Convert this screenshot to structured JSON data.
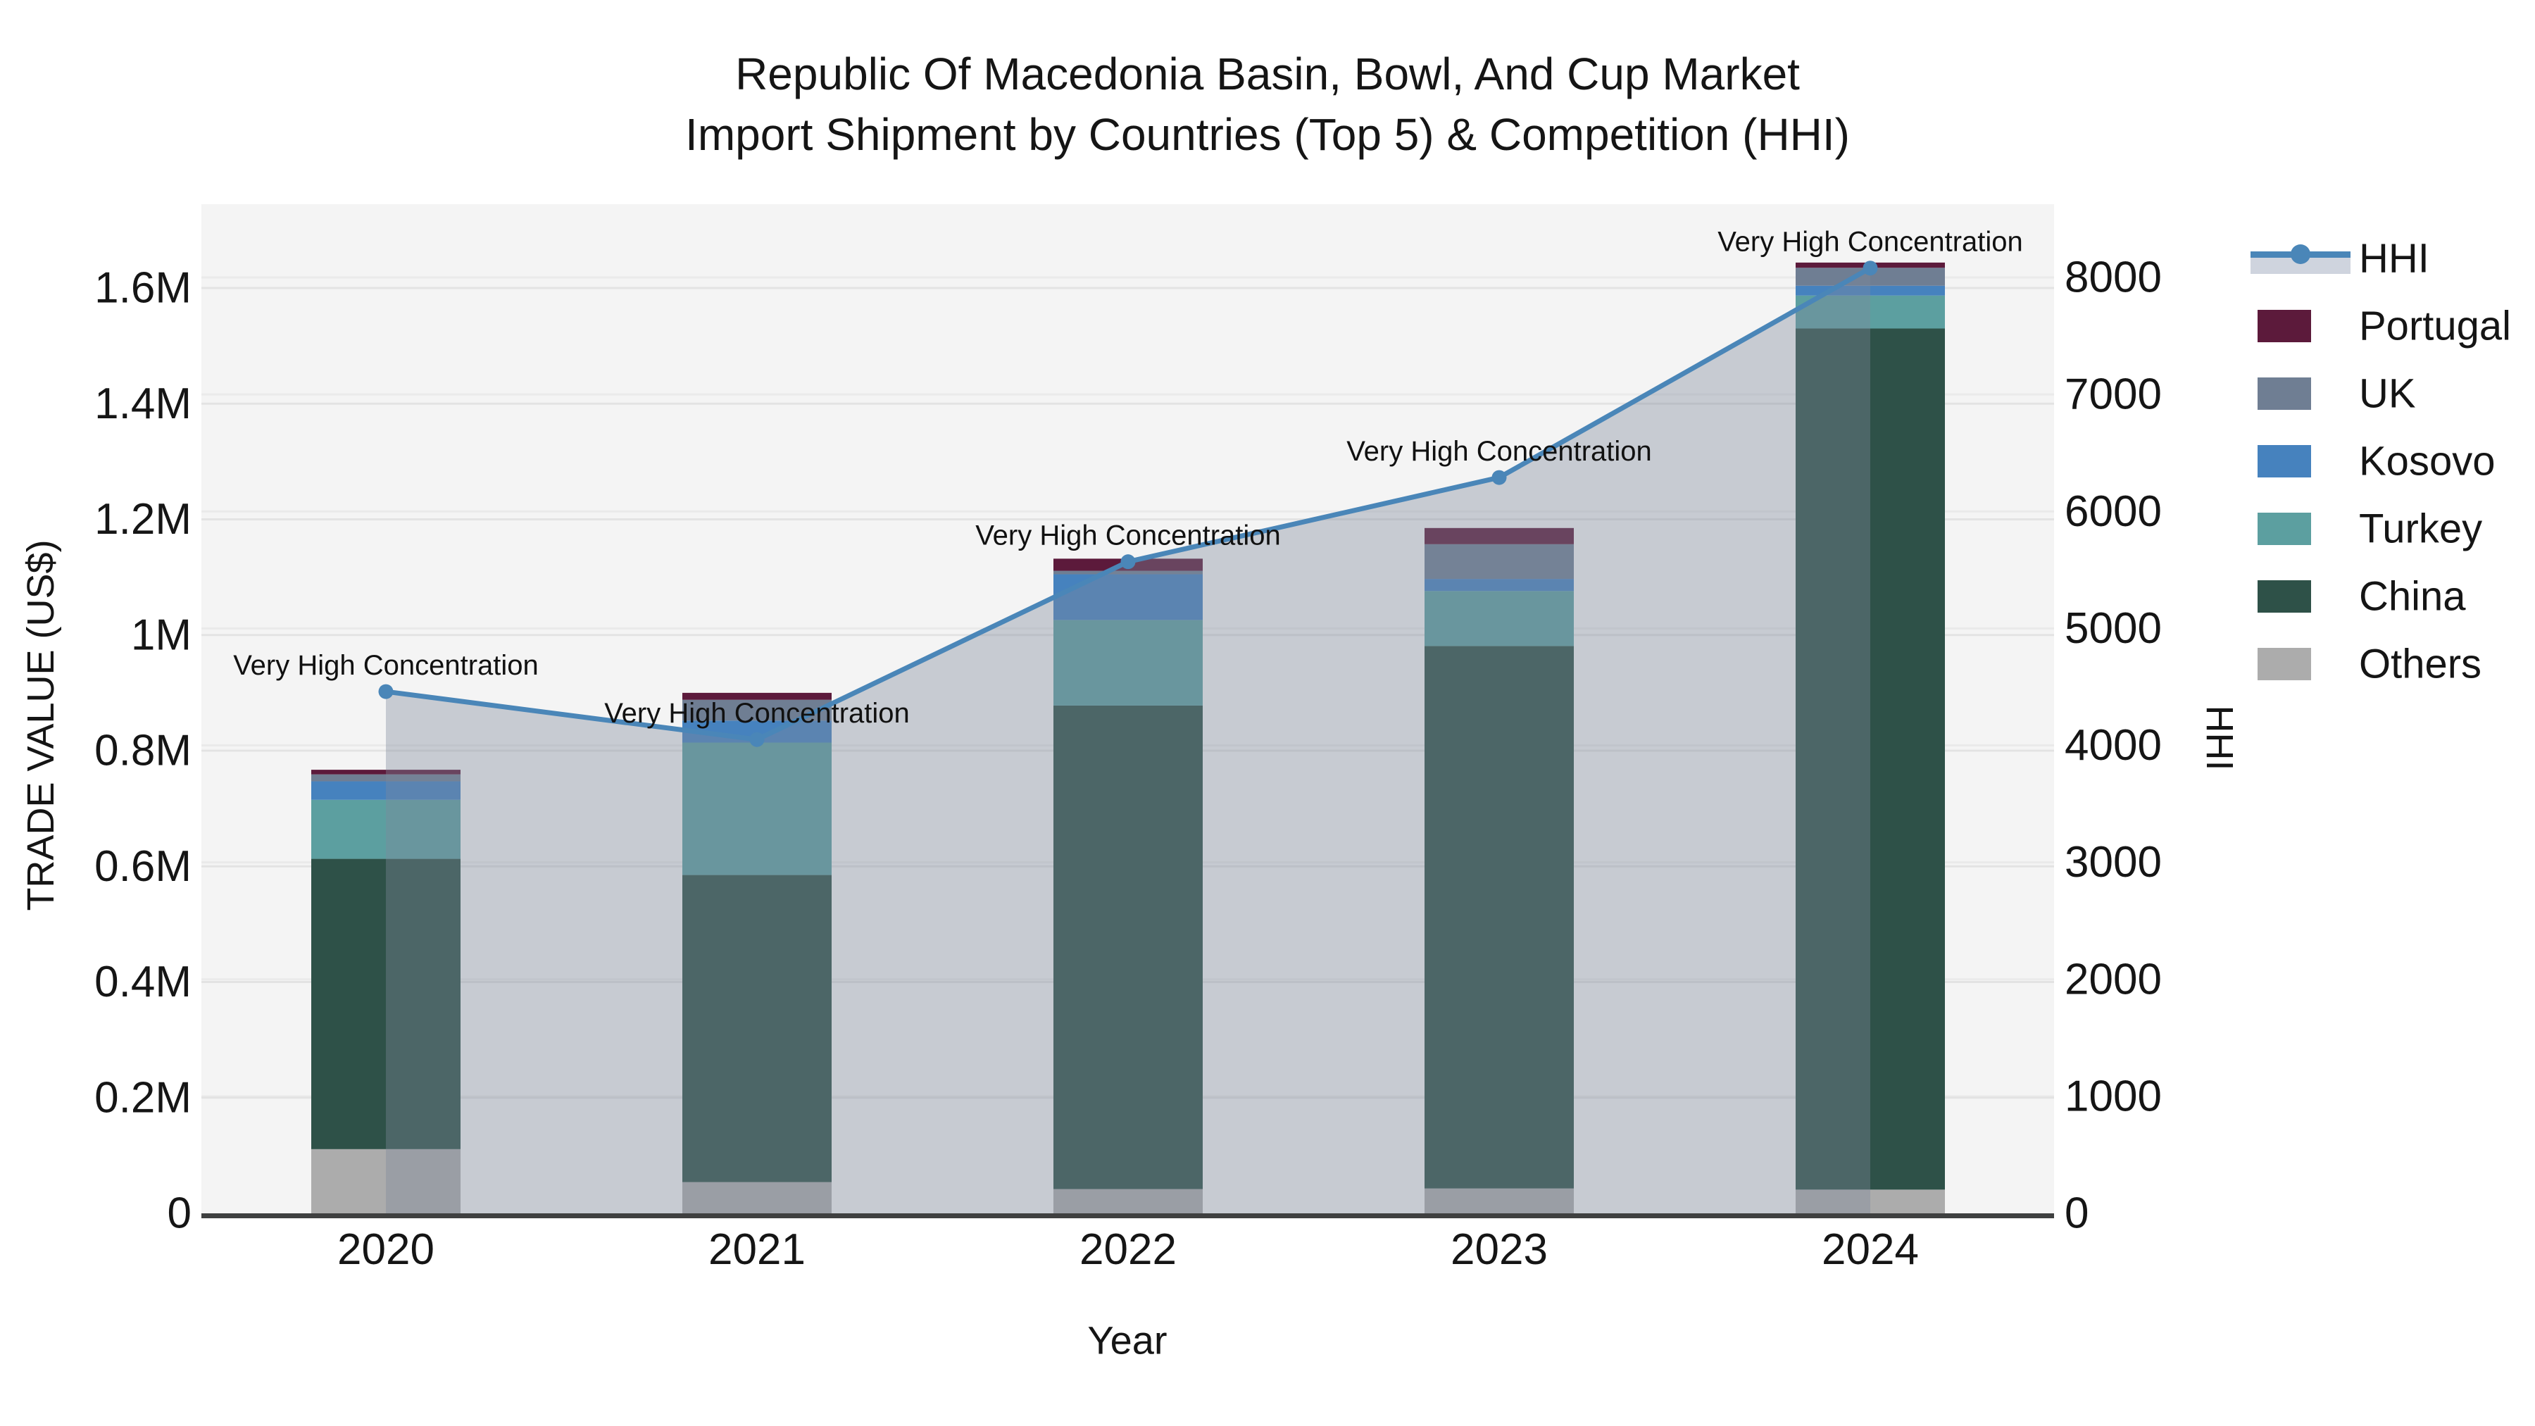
{
  "title": {
    "line1": "Republic Of Macedonia Basin, Bowl, And Cup Market",
    "line2": "Import Shipment by Countries (Top 5) & Competition (HHI)"
  },
  "axes": {
    "x": {
      "label": "Year",
      "ticks": [
        "2020",
        "2021",
        "2022",
        "2023",
        "2024"
      ]
    },
    "y_left": {
      "label": "TRADE VALUE (US$)",
      "ticks": [
        "0",
        "0.2M",
        "0.4M",
        "0.6M",
        "0.8M",
        "1M",
        "1.2M",
        "1.4M",
        "1.6M"
      ],
      "tick_values": [
        0,
        200000,
        400000,
        600000,
        800000,
        1000000,
        1200000,
        1400000,
        1600000
      ]
    },
    "y_right": {
      "label": "HHI",
      "ticks": [
        "0",
        "1000",
        "2000",
        "3000",
        "4000",
        "5000",
        "6000",
        "7000",
        "8000"
      ],
      "tick_values": [
        0,
        1000,
        2000,
        3000,
        4000,
        5000,
        6000,
        7000,
        8000
      ]
    }
  },
  "legend": [
    {
      "label": "HHI",
      "type": "line",
      "color": "#4A86B8"
    },
    {
      "label": "Portugal",
      "type": "swatch",
      "color": "#5C1A3B"
    },
    {
      "label": "UK",
      "type": "swatch",
      "color": "#6F7E93"
    },
    {
      "label": "Kosovo",
      "type": "swatch",
      "color": "#4682BE"
    },
    {
      "label": "Turkey",
      "type": "swatch",
      "color": "#5C9FA0"
    },
    {
      "label": "China",
      "type": "swatch",
      "color": "#2E5148"
    },
    {
      "label": "Others",
      "type": "swatch",
      "color": "#ACACAC"
    }
  ],
  "chart_data": {
    "type": "combo: stacked bar (trade value) + line with area fill (HHI)",
    "categories": [
      "2020",
      "2021",
      "2022",
      "2023",
      "2024"
    ],
    "bar_unit": "US$",
    "stack_order_bottom_to_top": [
      "Others",
      "China",
      "Turkey",
      "Kosovo",
      "UK",
      "Portugal"
    ],
    "series": [
      {
        "name": "Others",
        "type": "bar",
        "color": "#ACACAC",
        "values": [
          111000,
          54000,
          42000,
          43000,
          41000
        ]
      },
      {
        "name": "China",
        "type": "bar",
        "color": "#2E5148",
        "values": [
          502000,
          531000,
          836000,
          938000,
          1489000
        ]
      },
      {
        "name": "Turkey",
        "type": "bar",
        "color": "#5C9FA0",
        "values": [
          102000,
          229000,
          148000,
          95000,
          57000
        ]
      },
      {
        "name": "Kosovo",
        "type": "bar",
        "color": "#4682BE",
        "values": [
          32000,
          38000,
          79000,
          21000,
          17000
        ]
      },
      {
        "name": "UK",
        "type": "bar",
        "color": "#6F7E93",
        "values": [
          12000,
          36000,
          6000,
          60000,
          31000
        ]
      },
      {
        "name": "Portugal",
        "type": "bar",
        "color": "#5C1A3B",
        "values": [
          8000,
          12000,
          21000,
          28000,
          9000
        ]
      }
    ],
    "bar_totals": [
      767000,
      900000,
      1132000,
      1185000,
      1644000
    ],
    "line": {
      "name": "HHI",
      "color": "#4A86B8",
      "values": [
        4460,
        4050,
        5570,
        6290,
        8080
      ],
      "area_fill": "rgba(127,137,154,0.38)",
      "marker": "circle"
    },
    "annotations": [
      {
        "category": "2020",
        "text": "Very High Concentration"
      },
      {
        "category": "2021",
        "text": "Very High Concentration"
      },
      {
        "category": "2022",
        "text": "Very High Concentration"
      },
      {
        "category": "2023",
        "text": "Very High Concentration"
      },
      {
        "category": "2024",
        "text": "Very High Concentration"
      }
    ],
    "ylim_left": [
      0,
      1745000
    ],
    "ylim_right": [
      0,
      8630
    ],
    "grid": true,
    "legend_position": "right",
    "plot_background": "#F4F4F4",
    "grid_color": "#E3E3E3",
    "axis_line_color": "#3F4040"
  }
}
